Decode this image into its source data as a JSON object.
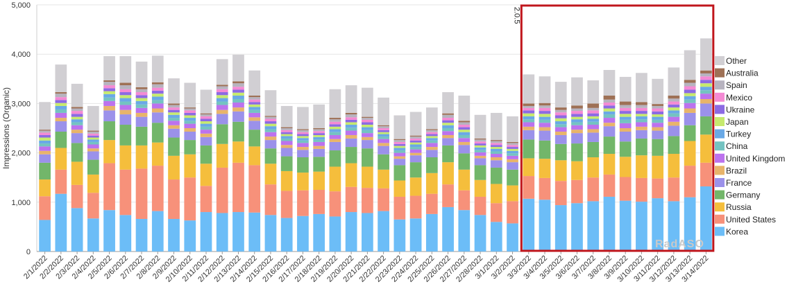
{
  "chart_data": {
    "type": "bar",
    "stacked": true,
    "ylabel": "Impressions (Organic)",
    "xlabel": "",
    "ylim": [
      0,
      5000
    ],
    "yticks": [
      "0",
      "1,000",
      "2,000",
      "3,000",
      "4,000",
      "5,000"
    ],
    "grid": true,
    "legend_position": "right",
    "categories": [
      "2/1/2022",
      "2/2/2022",
      "2/3/2022",
      "2/4/2022",
      "2/5/2022",
      "2/6/2022",
      "2/7/2022",
      "2/8/2022",
      "2/9/2022",
      "2/10/2022",
      "2/11/2022",
      "2/12/2022",
      "2/13/2022",
      "2/14/2022",
      "2/15/2022",
      "2/16/2022",
      "2/17/2022",
      "2/18/2022",
      "2/19/2022",
      "2/20/2022",
      "2/21/2022",
      "2/22/2022",
      "2/23/2022",
      "2/24/2022",
      "2/25/2022",
      "2/26/2022",
      "2/27/2022",
      "2/28/2022",
      "3/1/2022",
      "3/2/2022",
      "3/3/2022",
      "3/4/2022",
      "3/5/2022",
      "3/6/2022",
      "3/7/2022",
      "3/8/2022",
      "3/9/2022",
      "3/10/2022",
      "3/11/2022",
      "3/12/2022",
      "3/13/2022",
      "3/14/2022"
    ],
    "series": [
      {
        "name": "Korea",
        "color": "#6cbdf7",
        "values": [
          640,
          1170,
          880,
          670,
          840,
          740,
          660,
          820,
          660,
          630,
          800,
          780,
          800,
          790,
          740,
          680,
          720,
          760,
          710,
          800,
          780,
          820,
          650,
          670,
          760,
          900,
          840,
          740,
          600,
          570,
          1070,
          1050,
          940,
          980,
          1020,
          1110,
          1030,
          1010,
          1080,
          1020,
          1100,
          1320
        ]
      },
      {
        "name": "United States",
        "color": "#f7917a",
        "values": [
          480,
          490,
          470,
          520,
          950,
          920,
          1020,
          920,
          800,
          870,
          530,
          920,
          1000,
          960,
          620,
          550,
          520,
          490,
          510,
          510,
          510,
          460,
          460,
          460,
          410,
          460,
          400,
          370,
          380,
          450,
          460,
          440,
          490,
          470,
          480,
          450,
          480,
          480,
          400,
          480,
          640,
          480
        ]
      },
      {
        "name": "Russia",
        "color": "#f5be3c",
        "values": [
          340,
          440,
          470,
          370,
          470,
          490,
          470,
          470,
          480,
          470,
          450,
          480,
          430,
          380,
          420,
          400,
          360,
          370,
          500,
          480,
          430,
          380,
          330,
          370,
          420,
          450,
          420,
          340,
          390,
          320,
          360,
          390,
          420,
          380,
          410,
          420,
          410,
          460,
          460,
          480,
          500,
          570
        ]
      },
      {
        "name": "Germany",
        "color": "#72b66a",
        "values": [
          340,
          330,
          380,
          300,
          380,
          420,
          380,
          400,
          370,
          290,
          370,
          400,
          400,
          340,
          310,
          300,
          310,
          300,
          330,
          330,
          370,
          310,
          310,
          310,
          320,
          340,
          330,
          300,
          330,
          320,
          380,
          370,
          330,
          360,
          310,
          350,
          310,
          340,
          340,
          360,
          320,
          370
        ]
      },
      {
        "name": "France",
        "color": "#9b91ea",
        "values": [
          170,
          210,
          200,
          170,
          220,
          210,
          200,
          210,
          180,
          170,
          170,
          210,
          210,
          180,
          170,
          170,
          150,
          160,
          170,
          170,
          170,
          170,
          130,
          140,
          150,
          150,
          170,
          140,
          150,
          150,
          190,
          200,
          180,
          210,
          190,
          210,
          200,
          170,
          170,
          210,
          250,
          260
        ]
      },
      {
        "name": "Brazil",
        "color": "#e8b46a",
        "values": [
          70,
          70,
          70,
          60,
          90,
          90,
          80,
          80,
          70,
          70,
          70,
          80,
          80,
          70,
          70,
          60,
          60,
          60,
          60,
          70,
          60,
          60,
          50,
          50,
          60,
          60,
          60,
          50,
          60,
          60,
          70,
          70,
          70,
          70,
          70,
          70,
          70,
          70,
          70,
          80,
          90,
          90
        ]
      },
      {
        "name": "United Kingdom",
        "color": "#bc72ee",
        "values": [
          90,
          100,
          90,
          80,
          100,
          100,
          100,
          100,
          90,
          90,
          80,
          100,
          100,
          90,
          90,
          80,
          80,
          80,
          80,
          90,
          80,
          80,
          70,
          70,
          80,
          80,
          80,
          70,
          70,
          70,
          90,
          90,
          90,
          90,
          90,
          100,
          100,
          90,
          90,
          100,
          110,
          110
        ]
      },
      {
        "name": "China",
        "color": "#74c3c1",
        "values": [
          60,
          70,
          60,
          50,
          70,
          70,
          70,
          70,
          60,
          60,
          60,
          70,
          70,
          60,
          60,
          50,
          50,
          50,
          60,
          60,
          60,
          50,
          50,
          50,
          50,
          60,
          60,
          50,
          50,
          50,
          60,
          60,
          60,
          60,
          60,
          70,
          70,
          60,
          60,
          70,
          70,
          70
        ]
      },
      {
        "name": "Turkey",
        "color": "#6aa9e6",
        "values": [
          60,
          70,
          60,
          50,
          70,
          70,
          70,
          70,
          60,
          60,
          60,
          70,
          70,
          60,
          60,
          50,
          50,
          50,
          60,
          60,
          60,
          50,
          50,
          50,
          50,
          60,
          60,
          50,
          50,
          50,
          60,
          60,
          60,
          60,
          60,
          60,
          60,
          60,
          60,
          60,
          70,
          70
        ]
      },
      {
        "name": "Japan",
        "color": "#c6ea6e",
        "values": [
          60,
          60,
          50,
          40,
          60,
          60,
          60,
          60,
          50,
          50,
          50,
          60,
          60,
          50,
          50,
          40,
          40,
          40,
          50,
          50,
          50,
          40,
          40,
          40,
          40,
          50,
          50,
          40,
          40,
          40,
          60,
          60,
          60,
          50,
          50,
          60,
          60,
          50,
          50,
          60,
          60,
          70
        ]
      },
      {
        "name": "Ukraine",
        "color": "#8c6ae3",
        "values": [
          50,
          60,
          60,
          40,
          60,
          60,
          60,
          60,
          50,
          50,
          50,
          60,
          60,
          50,
          50,
          40,
          40,
          40,
          50,
          50,
          50,
          40,
          40,
          40,
          40,
          50,
          50,
          40,
          40,
          40,
          60,
          60,
          60,
          60,
          60,
          60,
          60,
          60,
          60,
          60,
          70,
          70
        ]
      },
      {
        "name": "Mexico",
        "color": "#f48ad4",
        "values": [
          50,
          60,
          60,
          40,
          60,
          60,
          60,
          60,
          50,
          50,
          50,
          60,
          60,
          50,
          50,
          40,
          40,
          40,
          50,
          50,
          50,
          40,
          40,
          40,
          40,
          50,
          50,
          40,
          40,
          40,
          50,
          60,
          60,
          60,
          60,
          60,
          60,
          60,
          60,
          60,
          70,
          70
        ]
      },
      {
        "name": "Spain",
        "color": "#b7b3bf",
        "values": [
          40,
          70,
          50,
          40,
          70,
          80,
          60,
          70,
          50,
          40,
          40,
          60,
          70,
          50,
          40,
          40,
          40,
          40,
          50,
          60,
          40,
          40,
          40,
          40,
          40,
          60,
          50,
          40,
          40,
          40,
          40,
          50,
          50,
          50,
          50,
          60,
          60,
          60,
          50,
          60,
          70,
          60
        ]
      },
      {
        "name": "Australia",
        "color": "#9e7055",
        "values": [
          20,
          30,
          30,
          20,
          30,
          50,
          40,
          40,
          30,
          20,
          20,
          30,
          40,
          30,
          20,
          20,
          20,
          20,
          30,
          30,
          20,
          20,
          20,
          20,
          20,
          30,
          30,
          20,
          20,
          20,
          50,
          50,
          50,
          60,
          90,
          80,
          70,
          60,
          40,
          60,
          60,
          60
        ]
      },
      {
        "name": "Other",
        "color": "#d1cfd3",
        "values": [
          560,
          560,
          470,
          500,
          490,
          540,
          520,
          540,
          510,
          500,
          480,
          520,
          540,
          510,
          520,
          430,
          450,
          480,
          580,
          560,
          590,
          560,
          480,
          480,
          440,
          430,
          510,
          480,
          550,
          520,
          590,
          540,
          520,
          570,
          470,
          520,
          500,
          590,
          510,
          570,
          600,
          650
        ]
      }
    ],
    "annotations": [
      {
        "type": "highlight-box",
        "label": "2.0.5",
        "from": "3/3/2022",
        "to": "3/14/2022",
        "color": "#c0161c"
      }
    ]
  },
  "watermark": "RadASO"
}
